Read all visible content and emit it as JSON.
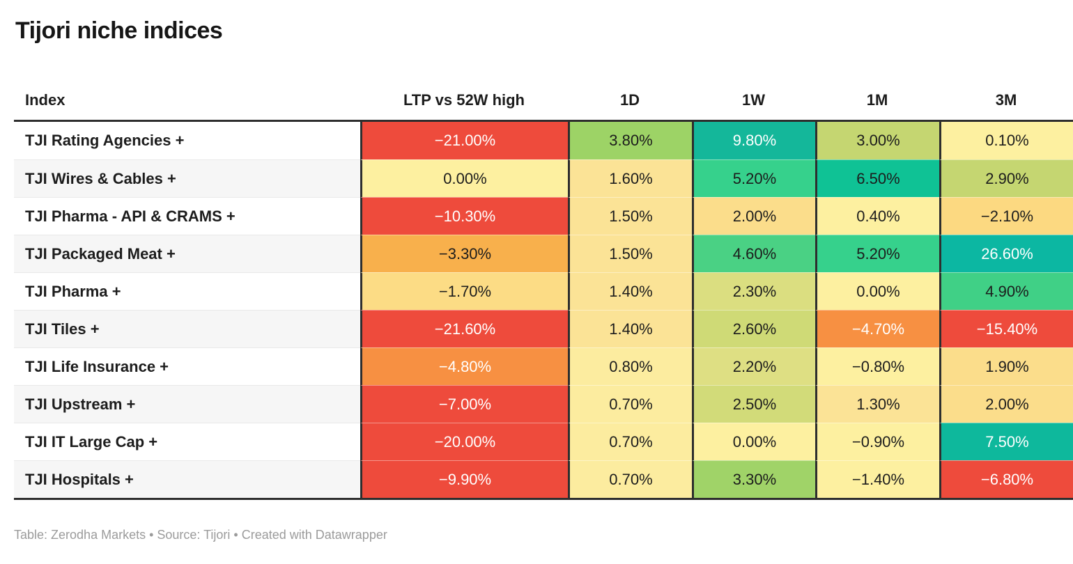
{
  "title": "Tijori niche indices",
  "footer": "Table: Zerodha Markets • Source: Tijori • Created with Datawrapper",
  "table": {
    "columns": [
      "Index",
      "LTP vs 52W high",
      "1D",
      "1W",
      "1M",
      "3M"
    ],
    "column_keys": [
      "index",
      "ltp-vs-52w-high",
      "1d",
      "1w",
      "1m",
      "3m"
    ],
    "rows": [
      {
        "label": "TJI Rating Agencies +",
        "cells": [
          {
            "text": "−21.00%",
            "bg": "#ee4b3c",
            "fg": "#ffffff"
          },
          {
            "text": "3.80%",
            "bg": "#9dd366",
            "fg": "#1c1c1c"
          },
          {
            "text": "9.80%",
            "bg": "#14b79a",
            "fg": "#ffffff"
          },
          {
            "text": "3.00%",
            "bg": "#c5d671",
            "fg": "#1c1c1c"
          },
          {
            "text": "0.10%",
            "bg": "#fdf0a0",
            "fg": "#1c1c1c"
          }
        ]
      },
      {
        "label": "TJI Wires & Cables +",
        "cells": [
          {
            "text": "0.00%",
            "bg": "#fdf0a0",
            "fg": "#1c1c1c"
          },
          {
            "text": "1.60%",
            "bg": "#fbe396",
            "fg": "#1c1c1c"
          },
          {
            "text": "5.20%",
            "bg": "#36d18c",
            "fg": "#1c1c1c"
          },
          {
            "text": "6.50%",
            "bg": "#0fc295",
            "fg": "#1c1c1c"
          },
          {
            "text": "2.90%",
            "bg": "#c5d671",
            "fg": "#1c1c1c"
          }
        ]
      },
      {
        "label": "TJI Pharma - API & CRAMS +",
        "cells": [
          {
            "text": "−10.30%",
            "bg": "#ee4b3c",
            "fg": "#ffffff"
          },
          {
            "text": "1.50%",
            "bg": "#fbe396",
            "fg": "#1c1c1c"
          },
          {
            "text": "2.00%",
            "bg": "#fbdd8b",
            "fg": "#1c1c1c"
          },
          {
            "text": "0.40%",
            "bg": "#fdf0a0",
            "fg": "#1c1c1c"
          },
          {
            "text": "−2.10%",
            "bg": "#fcd981",
            "fg": "#1c1c1c"
          }
        ]
      },
      {
        "label": "TJI Packaged Meat +",
        "cells": [
          {
            "text": "−3.30%",
            "bg": "#f8b04c",
            "fg": "#1c1c1c"
          },
          {
            "text": "1.50%",
            "bg": "#fbe396",
            "fg": "#1c1c1c"
          },
          {
            "text": "4.60%",
            "bg": "#4ad184",
            "fg": "#1c1c1c"
          },
          {
            "text": "5.20%",
            "bg": "#36d18c",
            "fg": "#1c1c1c"
          },
          {
            "text": "26.60%",
            "bg": "#0cb7a2",
            "fg": "#ffffff"
          }
        ]
      },
      {
        "label": "TJI Pharma +",
        "cells": [
          {
            "text": "−1.70%",
            "bg": "#fcdc85",
            "fg": "#1c1c1c"
          },
          {
            "text": "1.40%",
            "bg": "#fbe396",
            "fg": "#1c1c1c"
          },
          {
            "text": "2.30%",
            "bg": "#dbde80",
            "fg": "#1c1c1c"
          },
          {
            "text": "0.00%",
            "bg": "#fdf0a0",
            "fg": "#1c1c1c"
          },
          {
            "text": "4.90%",
            "bg": "#40d086",
            "fg": "#1c1c1c"
          }
        ]
      },
      {
        "label": "TJI Tiles +",
        "cells": [
          {
            "text": "−21.60%",
            "bg": "#ee4b3c",
            "fg": "#ffffff"
          },
          {
            "text": "1.40%",
            "bg": "#fbe396",
            "fg": "#1c1c1c"
          },
          {
            "text": "2.60%",
            "bg": "#cfda76",
            "fg": "#1c1c1c"
          },
          {
            "text": "−4.70%",
            "bg": "#f79042",
            "fg": "#ffffff"
          },
          {
            "text": "−15.40%",
            "bg": "#ee4b3c",
            "fg": "#ffffff"
          }
        ]
      },
      {
        "label": "TJI Life Insurance +",
        "cells": [
          {
            "text": "−4.80%",
            "bg": "#f79042",
            "fg": "#ffffff"
          },
          {
            "text": "0.80%",
            "bg": "#fcec9f",
            "fg": "#1c1c1c"
          },
          {
            "text": "2.20%",
            "bg": "#dedf83",
            "fg": "#1c1c1c"
          },
          {
            "text": "−0.80%",
            "bg": "#fdf0a0",
            "fg": "#1c1c1c"
          },
          {
            "text": "1.90%",
            "bg": "#fbdd8b",
            "fg": "#1c1c1c"
          }
        ]
      },
      {
        "label": "TJI Upstream +",
        "cells": [
          {
            "text": "−7.00%",
            "bg": "#ee4b3c",
            "fg": "#ffffff"
          },
          {
            "text": "0.70%",
            "bg": "#fcec9f",
            "fg": "#1c1c1c"
          },
          {
            "text": "2.50%",
            "bg": "#d2db79",
            "fg": "#1c1c1c"
          },
          {
            "text": "1.30%",
            "bg": "#fbe396",
            "fg": "#1c1c1c"
          },
          {
            "text": "2.00%",
            "bg": "#fbdd8b",
            "fg": "#1c1c1c"
          }
        ]
      },
      {
        "label": "TJI IT Large Cap +",
        "cells": [
          {
            "text": "−20.00%",
            "bg": "#ee4b3c",
            "fg": "#ffffff"
          },
          {
            "text": "0.70%",
            "bg": "#fcec9f",
            "fg": "#1c1c1c"
          },
          {
            "text": "0.00%",
            "bg": "#fdf0a0",
            "fg": "#1c1c1c"
          },
          {
            "text": "−0.90%",
            "bg": "#fdf0a0",
            "fg": "#1c1c1c"
          },
          {
            "text": "7.50%",
            "bg": "#0eb89c",
            "fg": "#ffffff"
          }
        ]
      },
      {
        "label": "TJI Hospitals +",
        "cells": [
          {
            "text": "−9.90%",
            "bg": "#ee4b3c",
            "fg": "#ffffff"
          },
          {
            "text": "0.70%",
            "bg": "#fcec9f",
            "fg": "#1c1c1c"
          },
          {
            "text": "3.30%",
            "bg": "#a0d368",
            "fg": "#1c1c1c"
          },
          {
            "text": "−1.40%",
            "bg": "#fdf0a0",
            "fg": "#1c1c1c"
          },
          {
            "text": "−6.80%",
            "bg": "#ee4b3c",
            "fg": "#ffffff"
          }
        ]
      }
    ]
  },
  "chart_data": {
    "type": "table",
    "title": "Tijori niche indices",
    "columns": [
      "Index",
      "LTP vs 52W high",
      "1D",
      "1W",
      "1M",
      "3M"
    ],
    "rows": [
      [
        "TJI Rating Agencies +",
        -21.0,
        3.8,
        9.8,
        3.0,
        0.1
      ],
      [
        "TJI Wires & Cables +",
        0.0,
        1.6,
        5.2,
        6.5,
        2.9
      ],
      [
        "TJI Pharma - API & CRAMS +",
        -10.3,
        1.5,
        2.0,
        0.4,
        -2.1
      ],
      [
        "TJI Packaged Meat +",
        -3.3,
        1.5,
        4.6,
        5.2,
        26.6
      ],
      [
        "TJI Pharma +",
        -1.7,
        1.4,
        2.3,
        0.0,
        4.9
      ],
      [
        "TJI Tiles +",
        -21.6,
        1.4,
        2.6,
        -4.7,
        -15.4
      ],
      [
        "TJI Life Insurance +",
        -4.8,
        0.8,
        2.2,
        -0.8,
        1.9
      ],
      [
        "TJI Upstream +",
        -7.0,
        0.7,
        2.5,
        1.3,
        2.0
      ],
      [
        "TJI IT Large Cap +",
        -20.0,
        0.7,
        0.0,
        -0.9,
        7.5
      ],
      [
        "TJI Hospitals +",
        -9.9,
        0.7,
        3.3,
        -1.4,
        -6.8
      ]
    ],
    "value_unit": "percent",
    "heatmap": true,
    "heatmap_scale_hint": {
      "strong_negative": "#ee4b3c",
      "negative": "#f79042",
      "neutral": "#fdf0a0",
      "positive": "#9dd366",
      "strong_positive": "#14b79a"
    },
    "footnote": "Table: Zerodha Markets • Source: Tijori • Created with Datawrapper"
  }
}
